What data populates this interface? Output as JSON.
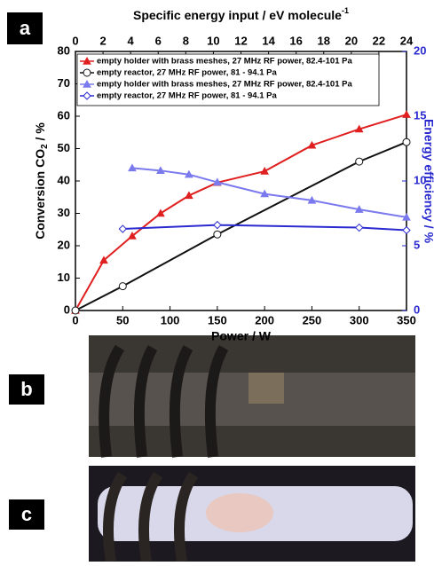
{
  "panels": [
    "a",
    "b",
    "c"
  ],
  "chart_data": {
    "type": "line",
    "xlabel": "Power / W",
    "ylabel": [
      "Conversion CO",
      "2",
      " / %"
    ],
    "y2label": "Energy efficiency / %",
    "top_xlabel": [
      "Specific energy input / eV molecule",
      "-1"
    ],
    "xlim": [
      0,
      350
    ],
    "xticks": [
      0,
      50,
      100,
      150,
      200,
      250,
      300,
      350
    ],
    "top_xlim": [
      0,
      24
    ],
    "top_xticks": [
      0,
      2,
      4,
      6,
      8,
      10,
      12,
      14,
      16,
      18,
      20,
      22,
      24
    ],
    "ylim": [
      0,
      80
    ],
    "yticks": [
      0,
      10,
      20,
      30,
      40,
      50,
      60,
      70,
      80
    ],
    "y2lim": [
      0,
      20
    ],
    "y2ticks": [
      0,
      5,
      10,
      15,
      20
    ],
    "series": [
      {
        "name": "empty holder with brass meshes, 27 MHz RF power,  82.4-101 Pa",
        "color": "#e02020",
        "marker": "triangle",
        "x": [
          0,
          30,
          60,
          90,
          120,
          150,
          200,
          250,
          300,
          350
        ],
        "values": [
          0,
          15.5,
          23,
          30,
          35.5,
          39.5,
          43,
          51,
          56,
          60.5
        ]
      },
      {
        "name": "empty reactor, 27 MHz RF power, 81 - 94.1 Pa",
        "color": "#111111",
        "marker": "circle",
        "x": [
          0,
          50,
          150,
          300,
          350
        ],
        "values": [
          0,
          7.5,
          23.5,
          46,
          52
        ]
      },
      {
        "name": "empty holder with brass meshes, 27 MHz RF power,  82.4-101 Pa",
        "color": "#7a7aee",
        "marker": "triangle",
        "axis": "y2",
        "x": [
          60,
          90,
          120,
          150,
          200,
          250,
          300,
          350
        ],
        "values": [
          11,
          10.8,
          10.5,
          9.9,
          9,
          8.5,
          7.8,
          7.2
        ]
      },
      {
        "name": "empty reactor, 27 MHz RF power, 81 - 94.1 Pa",
        "color": "#2a2ad0",
        "marker": "diamond",
        "axis": "y2",
        "x": [
          50,
          150,
          300,
          350
        ],
        "values": [
          6.3,
          6.6,
          6.4,
          6.2
        ]
      }
    ]
  }
}
